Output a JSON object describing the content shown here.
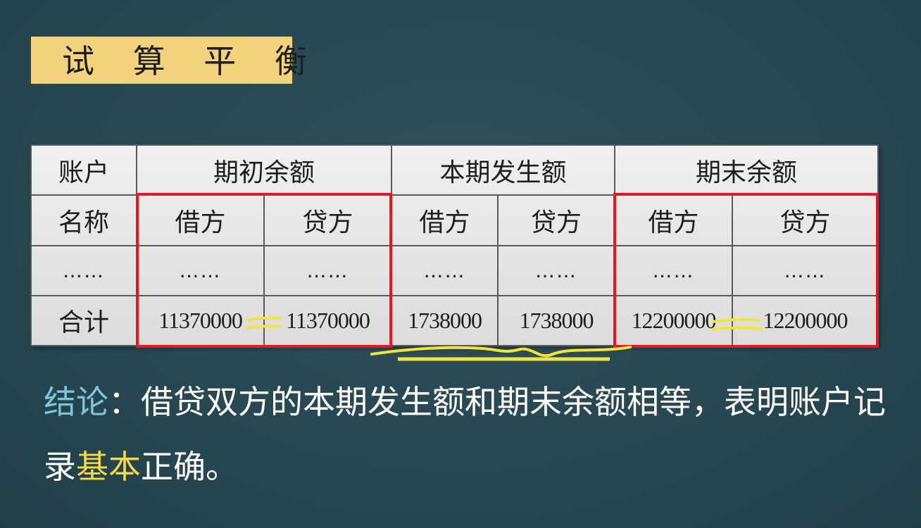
{
  "title": "试 算 平 衡",
  "table": {
    "account_header": [
      "账户",
      "名称"
    ],
    "groups": [
      "期初余额",
      "本期发生额",
      "期末余额"
    ],
    "sub_headers": [
      "借方",
      "贷方",
      "借方",
      "贷方",
      "借方",
      "贷方"
    ],
    "ellipsis_row": [
      "……",
      "……",
      "……",
      "……",
      "……",
      "……",
      "……"
    ],
    "total_row": {
      "label": "合计",
      "values": [
        "11370000",
        "11370000",
        "1738000",
        "1738000",
        "12200000",
        "12200000"
      ]
    }
  },
  "conclusion": {
    "label": "结论",
    "colon": "：",
    "text_1": "借贷双方的本期发生额和期末余额相等，表明账户记录",
    "highlight": "基本",
    "text_2": "正确。"
  },
  "colors": {
    "background": "#2a4b55",
    "title_bg": "#f2d27c",
    "highlight_box": "#e8161e",
    "annotation": "#f2e53a",
    "label": "#7cc6dc"
  }
}
